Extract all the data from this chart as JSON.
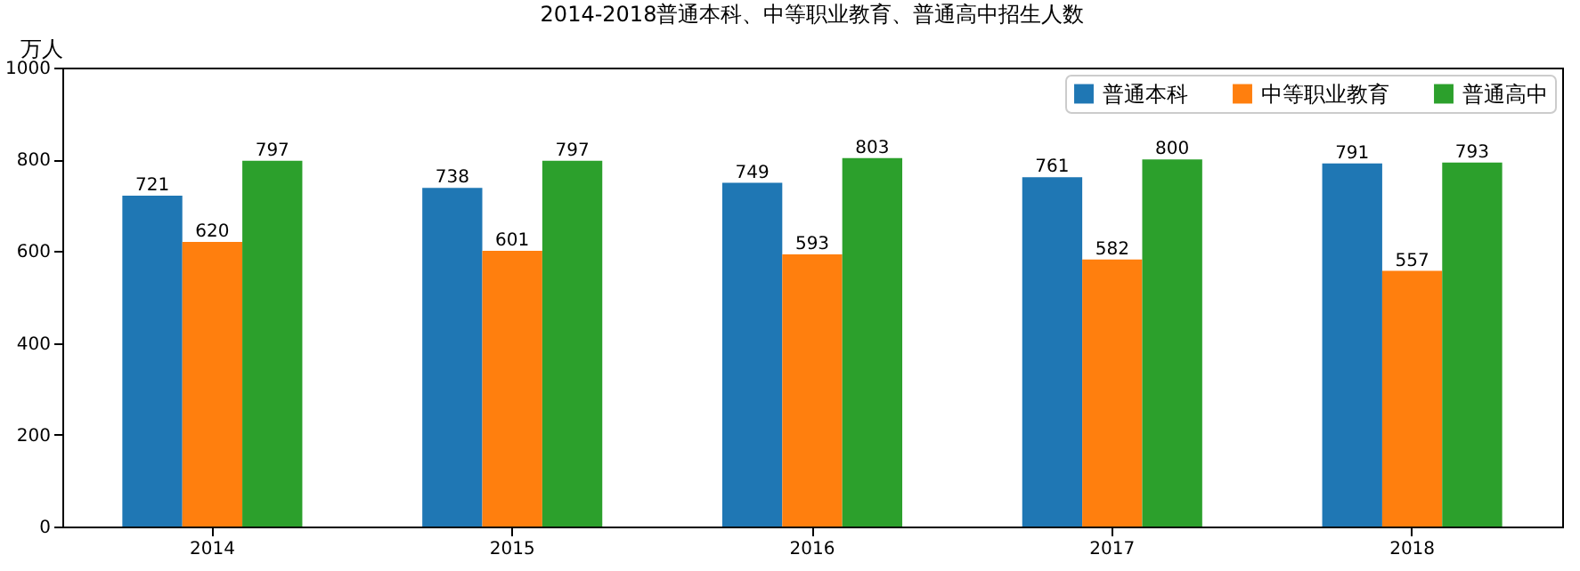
{
  "chart_data": {
    "type": "bar",
    "title": "2014-2018普通本科、中等职业教育、普通高中招生人数",
    "ylabel": "万人",
    "categories": [
      "2014",
      "2015",
      "2016",
      "2017",
      "2018"
    ],
    "series": [
      {
        "name": "普通本科",
        "color": "#1f77b4",
        "values": [
          721,
          738,
          749,
          761,
          791
        ]
      },
      {
        "name": "中等职业教育",
        "color": "#ff7f0e",
        "values": [
          620,
          601,
          593,
          582,
          557
        ]
      },
      {
        "name": "普通高中",
        "color": "#2ca02c",
        "values": [
          797,
          797,
          803,
          800,
          793
        ]
      }
    ],
    "ylim": [
      0,
      1000
    ],
    "yticks": [
      0,
      200,
      400,
      600,
      800,
      1000
    ],
    "grid": false,
    "legend": "top right",
    "data_labels": true
  }
}
